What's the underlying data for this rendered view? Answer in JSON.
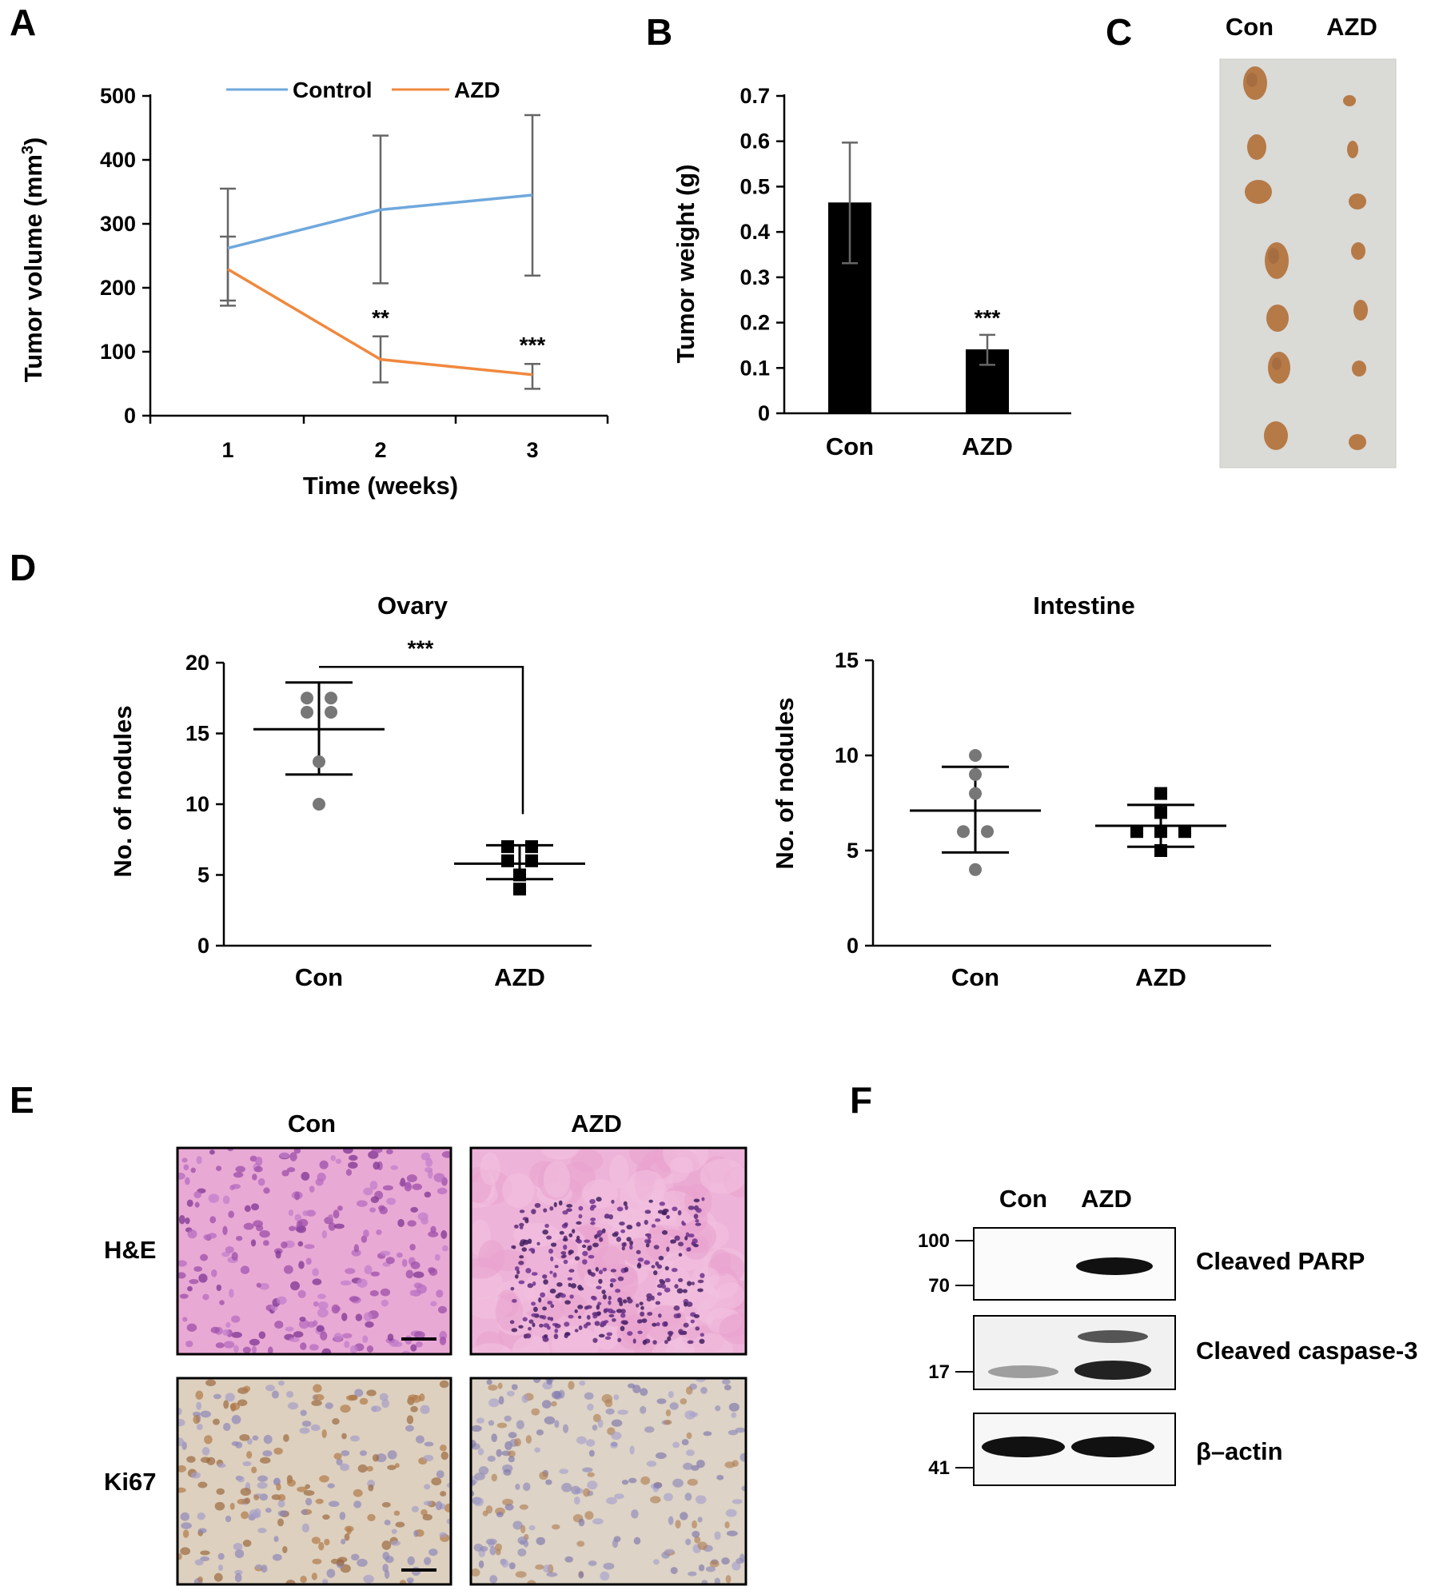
{
  "panels": {
    "A": "A",
    "B": "B",
    "C": "C",
    "D": "D",
    "E": "E",
    "F": "F"
  },
  "colors": {
    "control": "#6fa8dc",
    "azd": "#f0883e",
    "error_bar": "#666666",
    "bar_fill": "#000000",
    "dot_gray": "#777777",
    "tumor": "#b97a45",
    "paper": "#d9d9d7",
    "he_pink": "#e8a6d2",
    "he_purple": "#8a3f9d",
    "ki67_bg": "#ddd0bf",
    "ki67_brown": "#9b6a3f",
    "ki67_blue": "#8f88b8"
  },
  "chart_data": [
    {
      "panel": "A",
      "type": "line",
      "x": [
        1,
        2,
        3
      ],
      "xlabel": "Time (weeks)",
      "ylabel": "Tumor volume (mm3)",
      "ylabel_main": "Tumor volume (mm",
      "ylabel_sup": "3",
      "ylabel_tail": ")",
      "ylim": [
        0,
        500
      ],
      "yticks": [
        0,
        100,
        200,
        300,
        400,
        500
      ],
      "xticks": [
        1,
        2,
        3
      ],
      "legend": "top",
      "series": [
        {
          "name": "Control",
          "values": [
            262,
            322,
            345
          ],
          "err_low": [
            180,
            207,
            219
          ],
          "err_high": [
            355,
            438,
            470
          ]
        },
        {
          "name": "AZD",
          "values": [
            229,
            88,
            64
          ],
          "err_low": [
            172,
            52,
            42
          ],
          "err_high": [
            280,
            124,
            81
          ]
        }
      ],
      "annotations": [
        {
          "x": 2,
          "text": "**"
        },
        {
          "x": 3,
          "text": "***"
        }
      ]
    },
    {
      "panel": "B",
      "type": "bar",
      "categories": [
        "Con",
        "AZD"
      ],
      "values": [
        0.465,
        0.141
      ],
      "err_low": [
        0.331,
        0.107
      ],
      "err_high": [
        0.597,
        0.173
      ],
      "ylabel": "Tumor weight (g)",
      "ylim": [
        0,
        0.7
      ],
      "yticks": [
        "0",
        "0.1",
        "0.2",
        "0.3",
        "0.4",
        "0.5",
        "0.6",
        "0.7"
      ],
      "annotations": [
        {
          "category": "AZD",
          "text": "***"
        }
      ]
    },
    {
      "panel": "D",
      "type": "scatter",
      "title": "Ovary",
      "categories": [
        "Con",
        "AZD"
      ],
      "ylabel": "No. of nodules",
      "ylim": [
        0,
        20
      ],
      "yticks": [
        0,
        5,
        10,
        15,
        20
      ],
      "groups": [
        {
          "name": "Con",
          "points": [
            17.5,
            17.5,
            16.5,
            16.5,
            13,
            10
          ],
          "mean": 15.3,
          "sd_low": 12.1,
          "sd_high": 18.6,
          "marker": "circle"
        },
        {
          "name": "AZD",
          "points": [
            7,
            7,
            6,
            6,
            5,
            4
          ],
          "mean": 5.8,
          "sd_low": 4.7,
          "sd_high": 7.1,
          "marker": "square"
        }
      ],
      "bracket_text": "***"
    },
    {
      "panel": "D",
      "type": "scatter",
      "title": "Intestine",
      "categories": [
        "Con",
        "AZD"
      ],
      "ylabel": "No. of nodules",
      "ylim": [
        0,
        15
      ],
      "yticks": [
        0,
        5,
        10,
        15
      ],
      "groups": [
        {
          "name": "Con",
          "points": [
            10,
            9,
            8,
            6,
            6,
            4
          ],
          "mean": 7.1,
          "sd_low": 4.9,
          "sd_high": 9.4,
          "marker": "circle"
        },
        {
          "name": "AZD",
          "points": [
            8,
            7,
            6,
            6,
            6,
            5
          ],
          "mean": 6.3,
          "sd_low": 5.2,
          "sd_high": 7.4,
          "marker": "square"
        }
      ]
    }
  ],
  "panel_c": {
    "col_labels": [
      "Con",
      "AZD"
    ]
  },
  "panel_e": {
    "col_labels": [
      "Con",
      "AZD"
    ],
    "row_labels": [
      "H&E",
      "Ki67"
    ]
  },
  "panel_f": {
    "col_labels": [
      "Con",
      "AZD"
    ],
    "blots": [
      {
        "label": "Cleaved PARP",
        "markers": [
          "100",
          "70"
        ]
      },
      {
        "label": "Cleaved caspase-3",
        "markers": [
          "17"
        ]
      },
      {
        "label": "β–actin",
        "markers": [
          "41"
        ]
      }
    ]
  }
}
